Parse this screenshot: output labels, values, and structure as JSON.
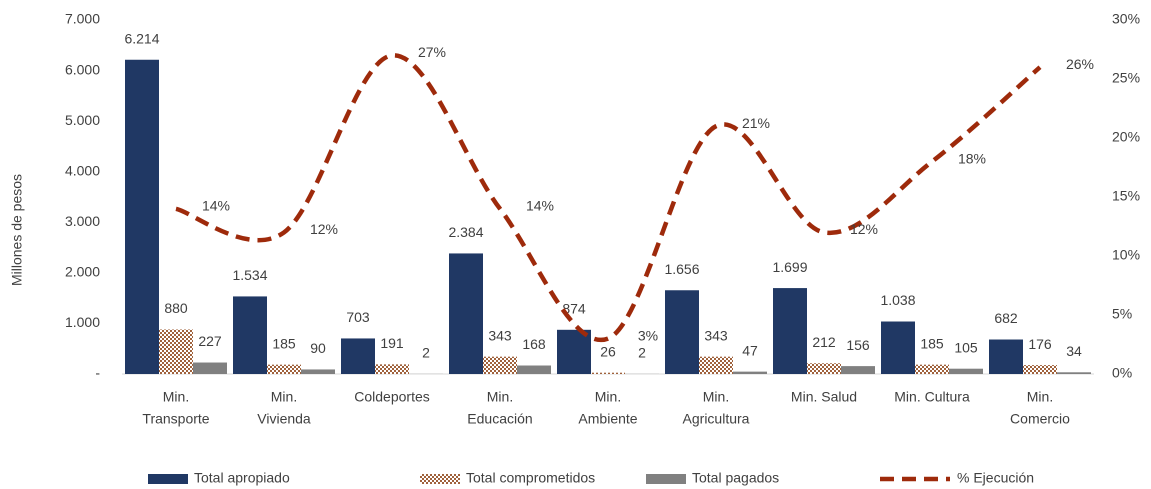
{
  "chart_data": {
    "type": "bar",
    "y_label": "Millones de pesos",
    "categories": [
      [
        "Min.",
        "Transporte"
      ],
      [
        "Min.",
        "Vivienda"
      ],
      [
        "Coldeportes"
      ],
      [
        "Min.",
        "Educación"
      ],
      [
        "Min.",
        "Ambiente"
      ],
      [
        "Min.",
        "Agricultura"
      ],
      [
        "Min. Salud"
      ],
      [
        "Min. Cultura"
      ],
      [
        "Min.",
        "Comercio"
      ]
    ],
    "series": [
      {
        "name": "Total apropiado",
        "type": "bar",
        "color": "#203864",
        "values": [
          6214,
          1534,
          703,
          2384,
          874,
          1656,
          1699,
          1038,
          682
        ],
        "value_labels": [
          "6.214",
          "1.534",
          "703",
          "2.384",
          "874",
          "1.656",
          "1.699",
          "1.038",
          "682"
        ]
      },
      {
        "name": "Total comprometidos",
        "type": "bar",
        "color": "#a0623c",
        "pattern": "checker",
        "values": [
          880,
          185,
          191,
          343,
          26,
          343,
          212,
          185,
          176
        ]
      },
      {
        "name": "Total  pagados",
        "type": "bar",
        "color": "#808080",
        "values": [
          227,
          90,
          2,
          168,
          2,
          47,
          156,
          105,
          34
        ]
      },
      {
        "name": "% Ejecución",
        "type": "line",
        "axis": "y2",
        "color": "#9e2a0b",
        "dashed": true,
        "values": [
          14,
          12,
          27,
          14,
          3,
          21,
          12,
          18,
          26
        ],
        "value_labels": [
          "14%",
          "12%",
          "27%",
          "14%",
          "3%",
          "21%",
          "12%",
          "18%",
          "26%"
        ]
      }
    ],
    "ylim": [
      0,
      7000
    ],
    "yticks": [
      {
        "value": 0,
        "label": "-"
      },
      {
        "value": 1000,
        "label": "1.000"
      },
      {
        "value": 2000,
        "label": "2.000"
      },
      {
        "value": 3000,
        "label": "3.000"
      },
      {
        "value": 4000,
        "label": "4.000"
      },
      {
        "value": 5000,
        "label": "5.000"
      },
      {
        "value": 6000,
        "label": "6.000"
      },
      {
        "value": 7000,
        "label": "7.000"
      }
    ],
    "y2lim": [
      0,
      30
    ],
    "y2ticks": [
      {
        "value": 0,
        "label": "0%"
      },
      {
        "value": 5,
        "label": "5%"
      },
      {
        "value": 10,
        "label": "10%"
      },
      {
        "value": 15,
        "label": "15%"
      },
      {
        "value": 20,
        "label": "20%"
      },
      {
        "value": 25,
        "label": "25%"
      },
      {
        "value": 30,
        "label": "30%"
      }
    ],
    "legend": "bottom"
  }
}
